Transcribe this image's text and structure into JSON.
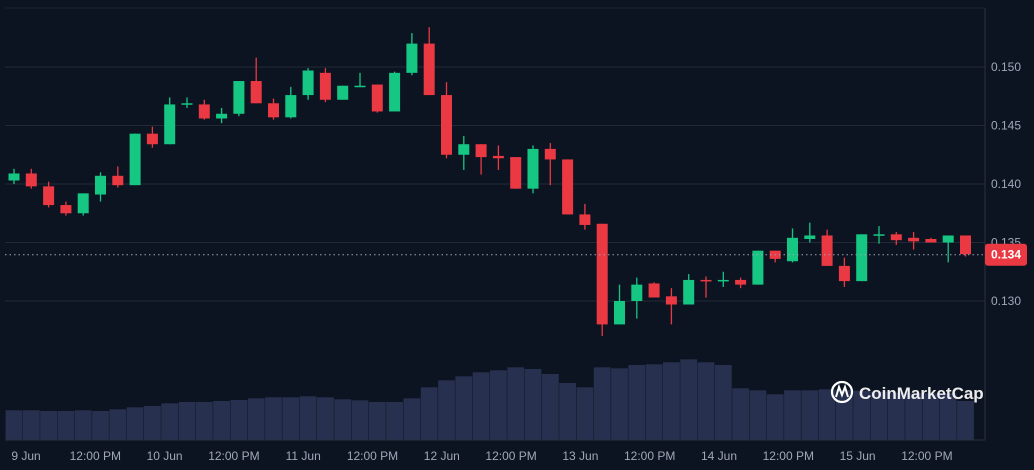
{
  "chart_data": {
    "type": "candlestick",
    "title": "",
    "xlabel": "",
    "ylabel": "",
    "ylim": [
      0.1265,
      0.1545
    ],
    "y_ticks": [
      "0.130",
      "0.135",
      "0.140",
      "0.145",
      "0.150"
    ],
    "y_tick_values": [
      0.13,
      0.135,
      0.14,
      0.145,
      0.15
    ],
    "x_ticks": [
      "9 Jun",
      "12:00 PM",
      "10 Jun",
      "12:00 PM",
      "11 Jun",
      "12:00 PM",
      "12 Jun",
      "12:00 PM",
      "13 Jun",
      "12:00 PM",
      "14 Jun",
      "12:00 PM",
      "15 Jun",
      "12:00 PM"
    ],
    "current_price": 0.134,
    "current_price_label": "0.134",
    "grid": true,
    "colors": {
      "up": "#16c784",
      "down": "#ea3943",
      "volume": "#28304f",
      "background": "#0d1421"
    },
    "ohlc": [
      [
        0.1403,
        0.1413,
        0.14,
        0.1409
      ],
      [
        0.1409,
        0.1413,
        0.1396,
        0.1398
      ],
      [
        0.1398,
        0.1402,
        0.138,
        0.1382
      ],
      [
        0.1382,
        0.1385,
        0.1373,
        0.1375
      ],
      [
        0.1375,
        0.1392,
        0.1373,
        0.1392
      ],
      [
        0.1391,
        0.141,
        0.1385,
        0.1407
      ],
      [
        0.1407,
        0.1415,
        0.1397,
        0.1399
      ],
      [
        0.1399,
        0.1443,
        0.1399,
        0.1443
      ],
      [
        0.1443,
        0.1449,
        0.1431,
        0.1434
      ],
      [
        0.1434,
        0.1474,
        0.1434,
        0.1468
      ],
      [
        0.1468,
        0.1474,
        0.1465,
        0.1469
      ],
      [
        0.1468,
        0.1472,
        0.1455,
        0.1456
      ],
      [
        0.1456,
        0.1465,
        0.1452,
        0.146
      ],
      [
        0.146,
        0.1488,
        0.1458,
        0.1488
      ],
      [
        0.1488,
        0.1508,
        0.1469,
        0.1469
      ],
      [
        0.1469,
        0.1473,
        0.1455,
        0.1457
      ],
      [
        0.1457,
        0.1483,
        0.1456,
        0.1476
      ],
      [
        0.1476,
        0.1499,
        0.1472,
        0.1497
      ],
      [
        0.1495,
        0.1499,
        0.147,
        0.1472
      ],
      [
        0.1472,
        0.1484,
        0.1472,
        0.1484
      ],
      [
        0.1483,
        0.1495,
        0.1483,
        0.1484
      ],
      [
        0.1485,
        0.1485,
        0.1461,
        0.1462
      ],
      [
        0.1462,
        0.1496,
        0.1462,
        0.1495
      ],
      [
        0.1495,
        0.1529,
        0.1493,
        0.152
      ],
      [
        0.152,
        0.1534,
        0.1476,
        0.1476
      ],
      [
        0.1476,
        0.1487,
        0.1422,
        0.1425
      ],
      [
        0.1425,
        0.1441,
        0.1412,
        0.1434
      ],
      [
        0.1434,
        0.1434,
        0.1408,
        0.1423
      ],
      [
        0.1424,
        0.1433,
        0.1412,
        0.1422
      ],
      [
        0.1423,
        0.1423,
        0.1396,
        0.1396
      ],
      [
        0.1396,
        0.1433,
        0.1392,
        0.143
      ],
      [
        0.143,
        0.1435,
        0.1399,
        0.1421
      ],
      [
        0.1421,
        0.1421,
        0.1374,
        0.1374
      ],
      [
        0.1374,
        0.1383,
        0.1361,
        0.1365
      ],
      [
        0.1366,
        0.1366,
        0.127,
        0.128
      ],
      [
        0.128,
        0.1314,
        0.128,
        0.13
      ],
      [
        0.13,
        0.132,
        0.1285,
        0.1314
      ],
      [
        0.1315,
        0.1316,
        0.1303,
        0.1303
      ],
      [
        0.1304,
        0.1311,
        0.128,
        0.1297
      ],
      [
        0.1297,
        0.1323,
        0.1297,
        0.1318
      ],
      [
        0.1318,
        0.1321,
        0.1303,
        0.1317
      ],
      [
        0.1317,
        0.1325,
        0.1312,
        0.1318
      ],
      [
        0.1318,
        0.132,
        0.1311,
        0.1314
      ],
      [
        0.1314,
        0.1343,
        0.1314,
        0.1343
      ],
      [
        0.1343,
        0.1343,
        0.1333,
        0.1336
      ],
      [
        0.1334,
        0.1362,
        0.1333,
        0.1354
      ],
      [
        0.1353,
        0.1367,
        0.135,
        0.1356
      ],
      [
        0.1356,
        0.1361,
        0.133,
        0.133
      ],
      [
        0.133,
        0.1337,
        0.1312,
        0.1317
      ],
      [
        0.1317,
        0.1357,
        0.1317,
        0.1357
      ],
      [
        0.1356,
        0.1364,
        0.1349,
        0.1357
      ],
      [
        0.1357,
        0.1359,
        0.1348,
        0.1352
      ],
      [
        0.1354,
        0.1359,
        0.1344,
        0.1351
      ],
      [
        0.1353,
        0.1354,
        0.135,
        0.135
      ],
      [
        0.135,
        0.1356,
        0.1333,
        0.1356
      ],
      [
        0.1356,
        0.1356,
        0.1338,
        0.134
      ]
    ],
    "volume_relative": [
      89,
      89,
      87,
      87,
      89,
      87,
      92,
      98,
      102,
      110,
      114,
      114,
      117,
      120,
      125,
      128,
      128,
      131,
      128,
      122,
      119,
      114,
      114,
      125,
      158,
      179,
      191,
      203,
      209,
      218,
      213,
      198,
      171,
      158,
      218,
      215,
      225,
      227,
      233,
      242,
      233,
      225,
      155,
      149,
      137,
      149,
      149,
      152,
      150,
      148,
      145,
      142,
      140,
      140,
      140,
      117
    ]
  },
  "watermark": "CoinMarketCap"
}
